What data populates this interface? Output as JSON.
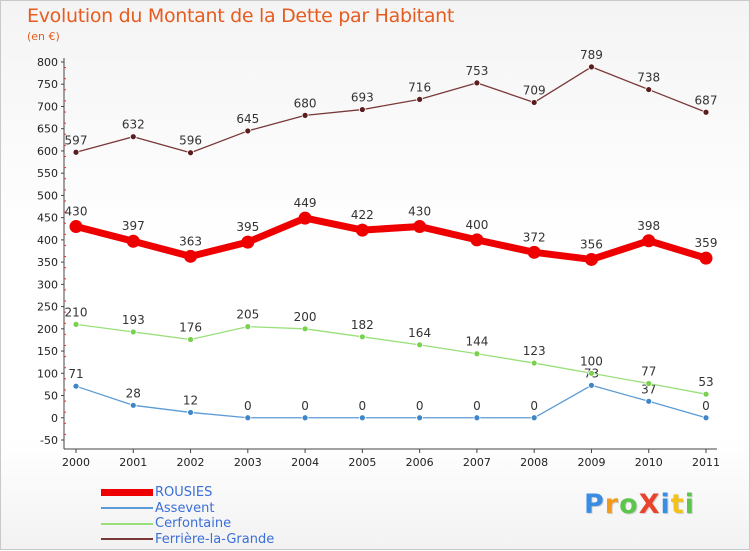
{
  "header": {
    "title": "Evolution du Montant de la Dette par Habitant",
    "subtitle": "(en €)"
  },
  "chart_data": {
    "type": "line",
    "title": "Evolution du Montant de la Dette par Habitant",
    "subtitle": "(en €)",
    "xlabel": "",
    "ylabel": "",
    "x": [
      "2000",
      "2001",
      "2002",
      "2003",
      "2004",
      "2005",
      "2006",
      "2007",
      "2008",
      "2009",
      "2010",
      "2011"
    ],
    "ylim": [
      -50,
      800
    ],
    "yticks": [
      -50,
      0,
      50,
      100,
      150,
      200,
      250,
      300,
      350,
      400,
      450,
      500,
      550,
      600,
      650,
      700,
      750,
      800
    ],
    "grid": false,
    "legend_position": "bottom-left",
    "series": [
      {
        "name": "ROUSIES",
        "color": "#ee0000",
        "emphasis": true,
        "values": [
          430,
          397,
          363,
          395,
          449,
          422,
          430,
          400,
          372,
          356,
          398,
          359
        ]
      },
      {
        "name": "Assevent",
        "color": "#5b9bd5",
        "values": [
          71,
          28,
          12,
          0,
          0,
          0,
          0,
          0,
          0,
          73,
          37,
          0
        ]
      },
      {
        "name": "Cerfontaine",
        "color": "#99e07a",
        "values": [
          210,
          193,
          176,
          205,
          200,
          182,
          164,
          144,
          123,
          100,
          77,
          53
        ]
      },
      {
        "name": "Ferrière-la-Grande",
        "color": "#7a3838",
        "values": [
          597,
          632,
          596,
          645,
          680,
          693,
          716,
          753,
          709,
          789,
          738,
          687
        ]
      }
    ]
  },
  "logo": {
    "text": "ProXiti",
    "letters": [
      "P",
      "r",
      "o",
      "X",
      "i",
      "t",
      "i"
    ],
    "colors": [
      "#3a8de0",
      "#f29a1a",
      "#5cc64a",
      "#e8432c",
      "#3a8de0",
      "#f2c21a",
      "#5cc64a"
    ]
  }
}
